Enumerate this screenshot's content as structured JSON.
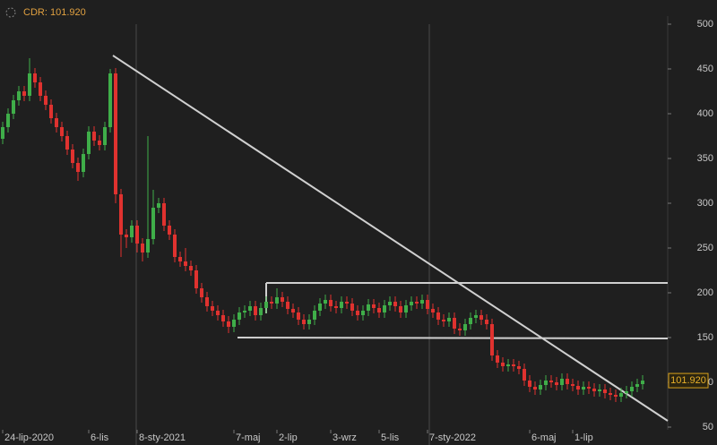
{
  "chart_data": {
    "type": "candlestick",
    "ticker": "CDR:",
    "last_price": {
      "value": 101.92,
      "label": "101.920"
    },
    "up_color": "#3fae49",
    "down_color": "#e0322f",
    "ylim": [
      47,
      509
    ],
    "yticks": [
      50,
      100,
      150,
      200,
      250,
      300,
      350,
      400,
      450,
      500
    ],
    "categories": [
      "24-lip-2020",
      null,
      null,
      null,
      null,
      null,
      null,
      null,
      null,
      null,
      null,
      null,
      null,
      null,
      null,
      null,
      "6-lis",
      null,
      null,
      null,
      null,
      null,
      null,
      null,
      null,
      "8-sty-2021",
      null,
      null,
      null,
      null,
      null,
      null,
      null,
      null,
      null,
      null,
      null,
      null,
      null,
      null,
      null,
      null,
      null,
      "7-maj",
      null,
      null,
      null,
      null,
      null,
      null,
      null,
      "2-lip",
      null,
      null,
      null,
      null,
      null,
      null,
      null,
      null,
      null,
      "3-wrz",
      null,
      null,
      null,
      null,
      null,
      null,
      null,
      null,
      "5-lis",
      null,
      null,
      null,
      null,
      null,
      null,
      null,
      null,
      "7-sty-2022",
      null,
      null,
      null,
      null,
      null,
      null,
      null,
      null,
      null,
      null,
      null,
      null,
      null,
      null,
      null,
      null,
      null,
      null,
      "6-maj",
      null,
      null,
      null,
      null,
      null,
      null,
      null,
      "1-lip",
      null,
      null,
      null,
      null,
      null,
      null,
      null,
      null,
      null,
      null,
      null,
      null,
      null
    ],
    "open": [
      372,
      385,
      400,
      415,
      425,
      420,
      445,
      435,
      420,
      410,
      395,
      385,
      375,
      360,
      345,
      335,
      355,
      380,
      370,
      365,
      385,
      445,
      310,
      265,
      262,
      275,
      255,
      245,
      260,
      295,
      300,
      275,
      265,
      240,
      235,
      230,
      225,
      205,
      195,
      185,
      180,
      175,
      168,
      162,
      170,
      178,
      180,
      185,
      175,
      183,
      190,
      188,
      195,
      190,
      182,
      178,
      170,
      165,
      170,
      180,
      188,
      192,
      185,
      183,
      190,
      188,
      180,
      175,
      180,
      187,
      183,
      178,
      186,
      190,
      185,
      178,
      186,
      190,
      188,
      192,
      182,
      178,
      170,
      168,
      172,
      160,
      158,
      165,
      172,
      175,
      170,
      165,
      130,
      122,
      118,
      120,
      118,
      115,
      102,
      95,
      92,
      97,
      102,
      100,
      97,
      104,
      98,
      96,
      92,
      95,
      93,
      90,
      92,
      88,
      86,
      84,
      88,
      90,
      95,
      98
    ],
    "high": [
      391,
      406,
      421,
      431,
      431,
      462,
      451,
      441,
      426,
      416,
      401,
      391,
      381,
      366,
      351,
      361,
      386,
      386,
      376,
      391,
      450,
      451,
      316,
      271,
      281,
      281,
      261,
      375,
      315,
      306,
      306,
      281,
      271,
      246,
      250,
      236,
      231,
      211,
      201,
      191,
      186,
      181,
      174,
      176,
      184,
      186,
      191,
      191,
      189,
      196,
      196,
      205,
      201,
      196,
      188,
      184,
      176,
      176,
      186,
      194,
      198,
      198,
      191,
      196,
      196,
      194,
      186,
      186,
      193,
      193,
      189,
      192,
      196,
      196,
      191,
      192,
      196,
      196,
      198,
      198,
      188,
      184,
      176,
      178,
      178,
      166,
      171,
      178,
      181,
      181,
      176,
      171,
      136,
      128,
      126,
      126,
      124,
      121,
      108,
      101,
      103,
      108,
      108,
      106,
      110,
      110,
      104,
      102,
      101,
      101,
      99,
      98,
      98,
      94,
      92,
      94,
      96,
      101,
      104,
      108
    ],
    "low": [
      366,
      379,
      394,
      409,
      414,
      414,
      429,
      414,
      404,
      389,
      379,
      369,
      354,
      339,
      325,
      329,
      349,
      364,
      359,
      359,
      379,
      300,
      240,
      250,
      256,
      245,
      235,
      239,
      254,
      289,
      269,
      259,
      234,
      229,
      224,
      219,
      199,
      189,
      179,
      174,
      169,
      162,
      155,
      156,
      164,
      172,
      174,
      169,
      169,
      177,
      182,
      182,
      184,
      176,
      172,
      164,
      159,
      159,
      164,
      174,
      182,
      179,
      177,
      177,
      182,
      174,
      169,
      169,
      174,
      177,
      172,
      172,
      180,
      179,
      172,
      172,
      180,
      182,
      182,
      176,
      172,
      164,
      162,
      162,
      154,
      152,
      152,
      159,
      166,
      164,
      159,
      124,
      116,
      112,
      112,
      112,
      109,
      96,
      89,
      86,
      86,
      91,
      94,
      91,
      91,
      92,
      90,
      86,
      86,
      87,
      84,
      84,
      82,
      80,
      78,
      78,
      82,
      84,
      89,
      92
    ],
    "close": [
      385,
      400,
      415,
      425,
      420,
      445,
      435,
      420,
      410,
      395,
      385,
      375,
      360,
      345,
      335,
      355,
      380,
      370,
      365,
      385,
      445,
      310,
      265,
      262,
      275,
      255,
      245,
      260,
      295,
      300,
      275,
      265,
      240,
      235,
      230,
      225,
      205,
      195,
      185,
      180,
      175,
      168,
      162,
      170,
      178,
      180,
      185,
      175,
      183,
      190,
      188,
      195,
      190,
      182,
      178,
      170,
      165,
      170,
      180,
      188,
      192,
      185,
      183,
      190,
      188,
      180,
      175,
      180,
      187,
      183,
      178,
      186,
      190,
      185,
      178,
      186,
      190,
      188,
      192,
      182,
      178,
      170,
      168,
      172,
      160,
      158,
      165,
      172,
      175,
      170,
      165,
      130,
      122,
      118,
      120,
      118,
      115,
      102,
      95,
      92,
      97,
      102,
      100,
      97,
      104,
      98,
      96,
      92,
      95,
      93,
      90,
      92,
      88,
      86,
      84,
      88,
      90,
      95,
      98,
      101.92
    ]
  }
}
